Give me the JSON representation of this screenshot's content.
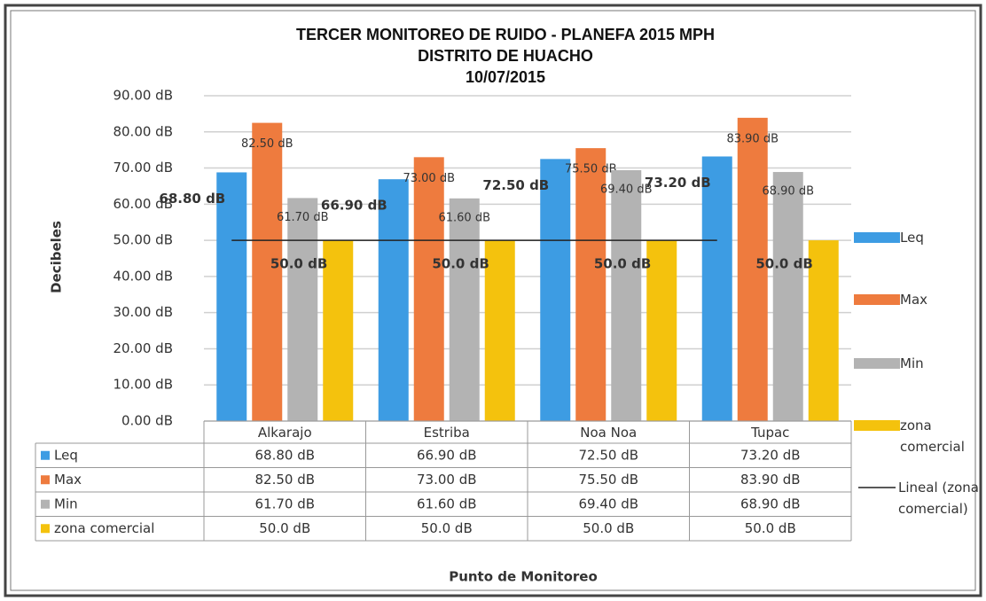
{
  "chart_data": {
    "type": "bar",
    "title": "TERCER MONITOREO DE RUIDO - PLANEFA 2015 MPH",
    "subtitle": "DISTRITO DE HUACHO",
    "date": "10/07/2015",
    "y_label": "Decibeles",
    "x_label": "Punto de Monitoreo",
    "categories": [
      "Alkarajo",
      "Estriba",
      "Noa Noa",
      "Tupac"
    ],
    "series": [
      {
        "name": "Leq",
        "color": "#3d9ce3",
        "values": [
          68.8,
          66.9,
          72.5,
          73.2
        ],
        "value_labels": [
          "68.80 dB",
          "66.90 dB",
          "72.50 dB",
          "73.20 dB"
        ]
      },
      {
        "name": "Max",
        "color": "#ee7b3e",
        "values": [
          82.5,
          73,
          75.5,
          83.9
        ],
        "value_labels": [
          "82.50 dB",
          "73.00 dB",
          "75.50 dB",
          "83.90 dB"
        ]
      },
      {
        "name": "Min",
        "color": "#b3b3b3",
        "values": [
          61.7,
          61.6,
          69.4,
          68.9
        ],
        "value_labels": [
          "61.70 dB",
          "61.60 dB",
          "69.40 dB",
          "68.90 dB"
        ]
      },
      {
        "name": "zona comercial",
        "color": "#f4c20d",
        "values": [
          50,
          50,
          50,
          50
        ],
        "value_labels": [
          "50.0 dB",
          "50.0 dB",
          "50.0 dB",
          "50.0 dB"
        ]
      }
    ],
    "trendline": {
      "name": "Lineal (zona comercial)",
      "color": "#222222",
      "values": [
        50,
        50,
        50,
        50
      ]
    },
    "ylim": [
      0,
      90
    ],
    "yticks": [
      {
        "value": 0,
        "label": "0.00 dB"
      },
      {
        "value": 10,
        "label": "10.00 dB"
      },
      {
        "value": 20,
        "label": "20.00 dB"
      },
      {
        "value": 30,
        "label": "30.00 dB"
      },
      {
        "value": 40,
        "label": "40.00 dB"
      },
      {
        "value": 50,
        "label": "50.00 dB"
      },
      {
        "value": 60,
        "label": "60.00 dB"
      },
      {
        "value": 70,
        "label": "70.00 dB"
      },
      {
        "value": 80,
        "label": "80.00 dB"
      },
      {
        "value": 90,
        "label": "90.00 dB"
      }
    ],
    "grid": true,
    "legend": "right"
  }
}
